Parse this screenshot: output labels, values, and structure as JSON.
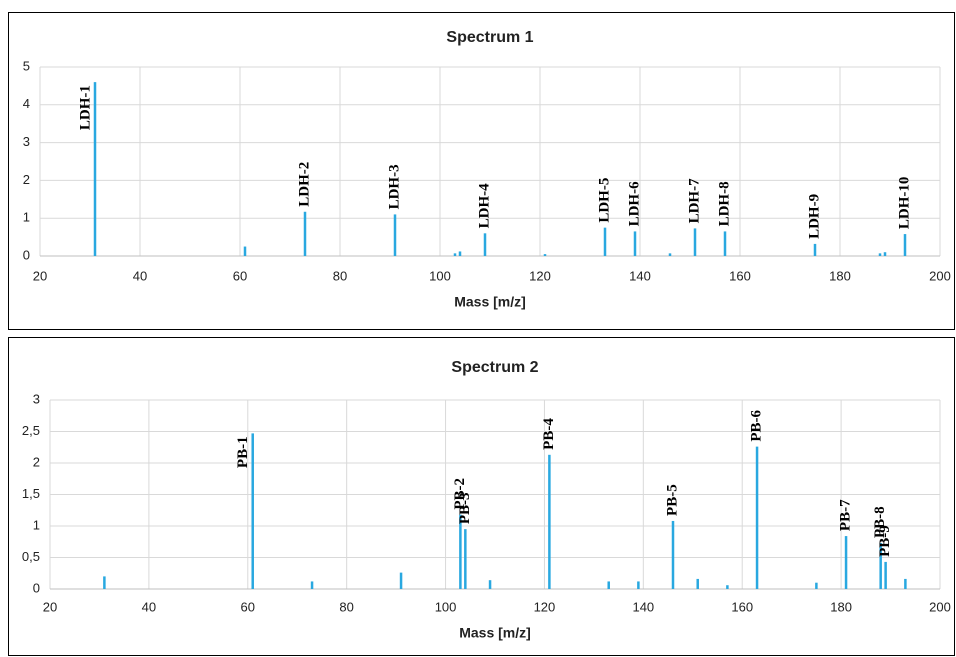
{
  "chart_data": [
    {
      "type": "stem",
      "title": "Spectrum 1",
      "x_label": "Mass [m/z]",
      "x": [
        31,
        61,
        73,
        91,
        103,
        104,
        109,
        121,
        133,
        139,
        146,
        151,
        157,
        175,
        188,
        189,
        193
      ],
      "values": [
        4.6,
        0.25,
        1.17,
        1.1,
        0.07,
        0.12,
        0.6,
        0.05,
        0.75,
        0.65,
        0.07,
        0.73,
        0.65,
        0.32,
        0.07,
        0.1,
        0.58
      ],
      "peak_labels": [
        "LDH-1",
        null,
        "LDH-2",
        "LDH-3",
        null,
        null,
        "LDH-4",
        null,
        "LDH-5",
        "LDH-6",
        null,
        "LDH-7",
        "LDH-8",
        "LDH-9",
        null,
        null,
        "LDH-10"
      ],
      "color": "#29a8e0",
      "grid": true,
      "xlim": [
        20,
        200
      ],
      "xticks": [
        20,
        40,
        60,
        80,
        100,
        120,
        140,
        160,
        180,
        200
      ],
      "ylim": [
        0,
        5
      ],
      "yticks": [
        0,
        1,
        2,
        3,
        4,
        5
      ]
    },
    {
      "type": "stem",
      "title": "Spectrum 2",
      "x_label": "Mass [m/z]",
      "x": [
        31,
        61,
        73,
        91,
        103,
        104,
        109,
        121,
        133,
        139,
        146,
        151,
        157,
        163,
        175,
        181,
        188,
        189,
        193
      ],
      "values": [
        0.2,
        2.47,
        0.12,
        0.26,
        1.18,
        0.95,
        0.14,
        2.13,
        0.12,
        0.12,
        1.08,
        0.16,
        0.06,
        2.26,
        0.1,
        0.84,
        0.73,
        0.43,
        0.16
      ],
      "peak_labels": [
        null,
        "PB-1",
        null,
        null,
        "PB-2",
        "PB-3",
        null,
        "PB-4",
        null,
        null,
        "PB-5",
        null,
        null,
        "PB-6",
        null,
        "PB-7",
        "PB-8",
        "PB-9",
        null
      ],
      "color": "#29a8e0",
      "grid": true,
      "xlim": [
        20,
        200
      ],
      "xticks": [
        20,
        40,
        60,
        80,
        100,
        120,
        140,
        160,
        180,
        200
      ],
      "ylim": [
        0,
        3
      ],
      "yticks": [
        0,
        {
          "value": 0.5,
          "label": "0,5"
        },
        1,
        {
          "value": 1.5,
          "label": "1,5"
        },
        2,
        {
          "value": 2.5,
          "label": "2,5"
        },
        3
      ]
    }
  ]
}
